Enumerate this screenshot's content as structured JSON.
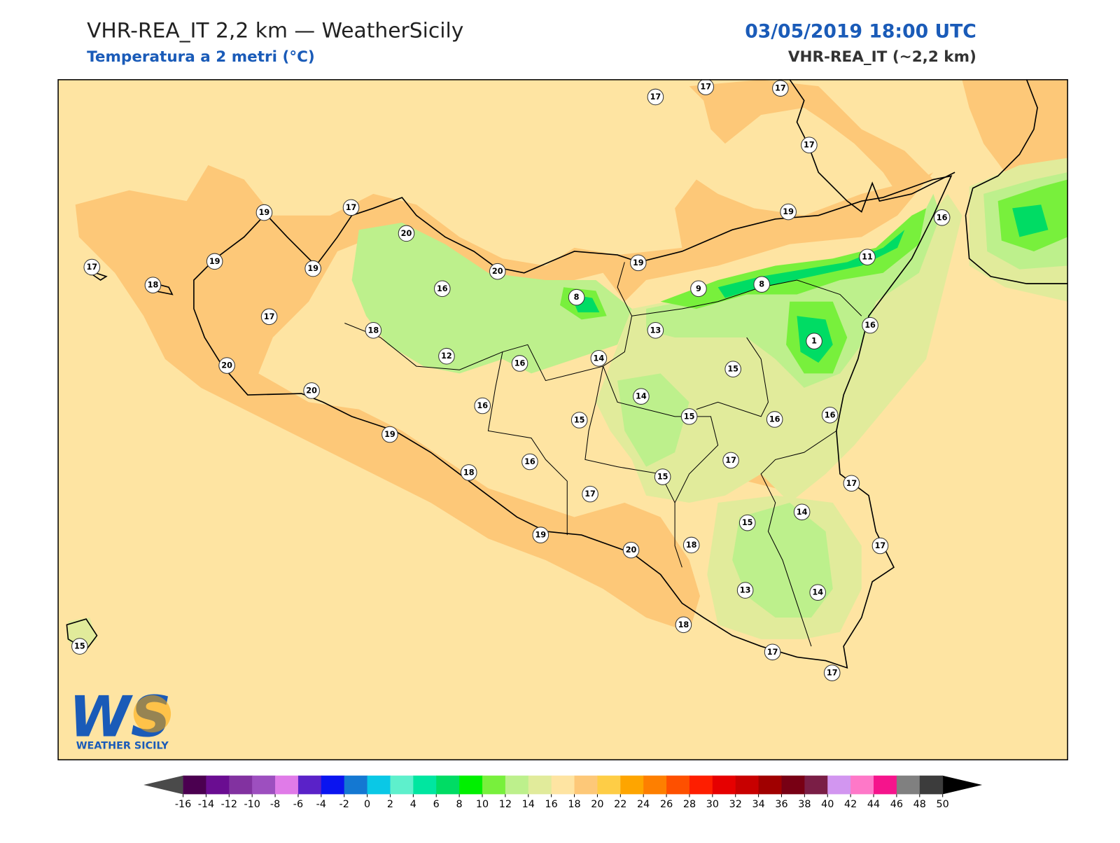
{
  "header": {
    "title": "VHR-REA_IT 2,2 km — WeatherSicily",
    "subtitle": "Temperatura a 2 metri (°C)",
    "date": "03/05/2019 18:00 UTC",
    "model": "VHR-REA_IT (~2,2 km)"
  },
  "stations": [
    17,
    17,
    17,
    17,
    19,
    17,
    20,
    19,
    16,
    17,
    19,
    19,
    18,
    20,
    19,
    11,
    16,
    8,
    9,
    8,
    17,
    18,
    13,
    16,
    1,
    12,
    14,
    16,
    20,
    15,
    20,
    14,
    16,
    15,
    15,
    16,
    16,
    19,
    16,
    17,
    18,
    15,
    17,
    17,
    15,
    14,
    19,
    20,
    18,
    17,
    13,
    14,
    18,
    17,
    17,
    15
  ],
  "logo": {
    "mark": "WS",
    "name": "WEATHER SICILY"
  },
  "colorbar": {
    "ticks": [
      -16,
      -14,
      -12,
      -10,
      -8,
      -6,
      -4,
      -2,
      0,
      2,
      4,
      6,
      8,
      10,
      12,
      14,
      16,
      18,
      20,
      22,
      24,
      26,
      28,
      30,
      32,
      34,
      36,
      38,
      40,
      42,
      44,
      46,
      48,
      50
    ],
    "colors": [
      "#4b0050",
      "#6a0d91",
      "#8232a0",
      "#9d4fbf",
      "#e07be8",
      "#5a22c8",
      "#0a14f0",
      "#1478d2",
      "#0ac8e6",
      "#5ef0cc",
      "#00e6a0",
      "#00dc64",
      "#00f000",
      "#78f03c",
      "#bdf08c",
      "#e1eb9b",
      "#fee4a2",
      "#fdc878",
      "#fecd46",
      "#fea500",
      "#fe7f00",
      "#fe5000",
      "#fe1e00",
      "#e60000",
      "#c80000",
      "#a00000",
      "#780014",
      "#7a1e46",
      "#d296f0",
      "#fe78c8",
      "#f5148c",
      "#808080",
      "#3c3c3c"
    ],
    "under": "#4a4a4a",
    "over": "#000000"
  }
}
